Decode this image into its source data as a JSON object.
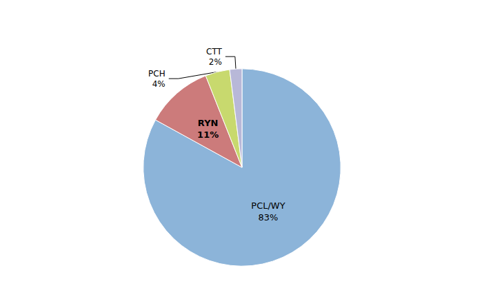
{
  "chart_data": {
    "type": "pie",
    "categories": [
      "PCL/WY",
      "RYN",
      "PCH",
      "CTT"
    ],
    "values": [
      83,
      11,
      4,
      2
    ],
    "value_labels": [
      "83%",
      "11%",
      "4%",
      "2%"
    ],
    "colors": [
      "#8cb4d9",
      "#cc7b7b",
      "#c8d96e",
      "#b8b8d8"
    ],
    "data_labels": true,
    "legend": false
  }
}
